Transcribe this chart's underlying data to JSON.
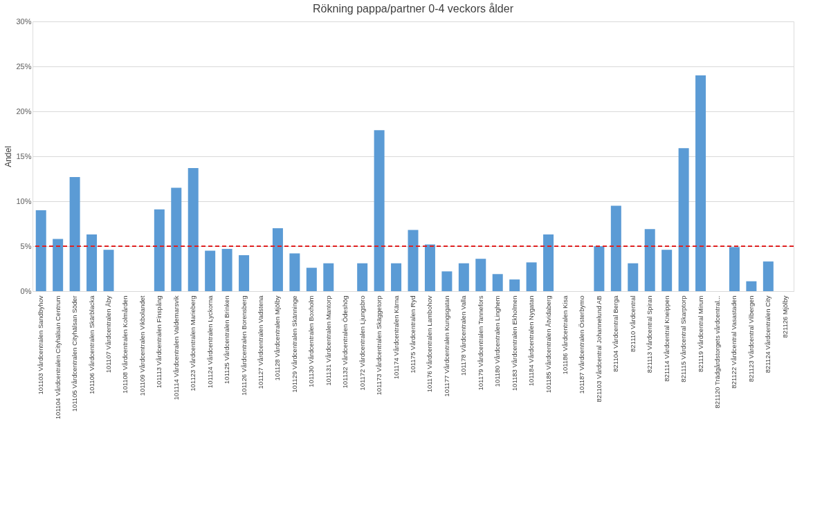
{
  "chart_data": {
    "type": "bar",
    "title": "Rökning pappa/partner 0-4 veckors ålder",
    "ylabel": "Andel",
    "categories": [
      "101103 Vårdcentralen Sandbyhov",
      "101104 Vårdcentralen Cityhälsan Centrum",
      "101105 Vårdcentralen Cityhälsan Söder",
      "101106 Vårdcentralen Skärblacka",
      "101107 Vårdcentralen Åby",
      "101108 Vårdcentralen Kolmården",
      "101109 Vårdcentralen Vikbolandet",
      "101113 Vårdcentralen Finspång",
      "101114 Vårdcentralen Valdemarsvik",
      "101123 Vårdcentralen Marieberg",
      "101124 Vårdcentralen Lyckorna",
      "101125 Vårdcentralen Brinken",
      "101126 Vårdcentralen Borensberg",
      "101127 Vårdcentralen Vadstena",
      "101128 Vårdcentralen Mjölby",
      "101129 Vårdcentralen Skänninge",
      "101130 Vårdcentralen Boxholm",
      "101131 Vårdcentralen Mantorp",
      "101132 Vårdcentralen Ödeshög",
      "101172 Vårdcentralen Ljungsbro",
      "101173 Vårdcentralen Skäggetorp",
      "101174 Vårdcentralen Kärna",
      "101175 Vårdcentralen Ryd",
      "101176 Vårdcentralen Lambohov",
      "101177 Vårdcentralen Kungsgatan",
      "101178 Vårdcentralen Valla",
      "101179 Vårdcentralen Tannefors",
      "101180 Vårdcentralen Linghem",
      "101183 Vårdcentralen Ekholmen",
      "101184 Vårdcentralen Nygatan",
      "101185 Vårdcentralen Åtvidaberg",
      "101186 Vårdcentralen Kisa",
      "101187 Vårdcentralen Österbymo",
      "821103 Vårdcentral Johannelund AB",
      "821104 Vårdcentral Berga",
      "821110 Vårdcentral",
      "821113 Vårdcentral Spiran",
      "821114 Vårdcentral Kneippen",
      "821115 Vårdcentral Skarptorp",
      "821119 Vårdcentral Mirum",
      "821120 Trädgårdstorgets vårdcentral...",
      "821122 Vårdcentral Vasastaden",
      "821123 Vårdcentral Vilbergen",
      "821124 Vårdcentralen City",
      "821126 Mjölby"
    ],
    "series": [
      {
        "color": "#5b9bd5",
        "values": [
          9.0,
          5.8,
          12.7,
          6.3,
          4.6,
          null,
          null,
          9.1,
          11.5,
          13.7,
          4.5,
          4.7,
          4.0,
          null,
          7.0,
          4.2,
          2.6,
          3.1,
          null,
          3.1,
          17.9,
          3.1,
          6.8,
          5.2,
          2.2,
          3.1,
          3.6,
          1.9,
          1.3,
          3.2,
          6.3,
          null,
          null,
          5.0,
          9.5,
          3.1,
          6.9,
          4.6,
          15.9,
          24.0,
          null,
          4.9,
          1.1,
          3.3,
          null
        ]
      }
    ],
    "ylim": [
      0,
      30
    ],
    "yticks": [
      {
        "value": 0,
        "label": "0%"
      },
      {
        "value": 5,
        "label": "5%"
      },
      {
        "value": 10,
        "label": "10%"
      },
      {
        "value": 15,
        "label": "15%"
      },
      {
        "value": 20,
        "label": "20%"
      },
      {
        "value": 25,
        "label": "25%"
      },
      {
        "value": 30,
        "label": "30%"
      }
    ],
    "grid": "y",
    "ref_lines": [
      {
        "axis": "y",
        "value": 5,
        "color": "#e02020",
        "line_style": "dashed"
      }
    ]
  }
}
